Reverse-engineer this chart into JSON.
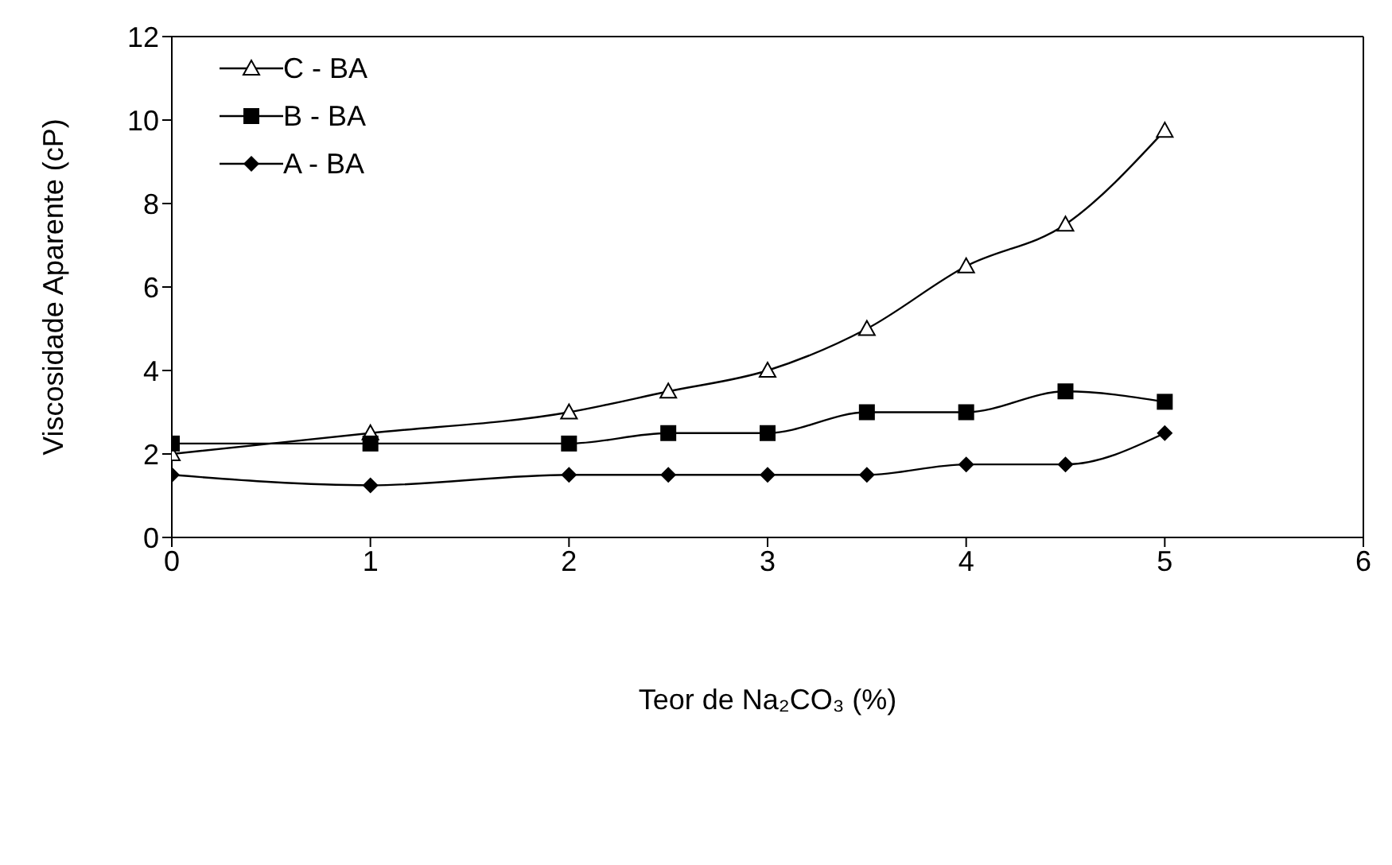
{
  "chart_data": {
    "type": "line",
    "xlabel": "Teor de Na₂CO₃ (%)",
    "ylabel": "Viscosidade Aparente (cP)",
    "x": [
      0,
      1,
      2,
      2.5,
      3,
      3.5,
      4,
      4.5,
      5
    ],
    "series": [
      {
        "name": "C - BA",
        "color": "#000000",
        "marker": "triangle",
        "values": [
          2.0,
          2.5,
          3.0,
          3.5,
          4.0,
          5.0,
          6.5,
          7.5,
          9.75
        ]
      },
      {
        "name": "B - BA",
        "color": "#000000",
        "marker": "square",
        "values": [
          2.25,
          2.25,
          2.25,
          2.5,
          2.5,
          3.0,
          3.0,
          3.5,
          3.25
        ]
      },
      {
        "name": "A - BA",
        "color": "#000000",
        "marker": "diamond",
        "values": [
          1.5,
          1.25,
          1.5,
          1.5,
          1.5,
          1.5,
          1.75,
          1.75,
          2.5
        ]
      }
    ],
    "xlim": [
      0,
      6
    ],
    "xticks": [
      0,
      1,
      2,
      3,
      4,
      5,
      6
    ],
    "ylim": [
      0,
      12
    ],
    "yticks": [
      0,
      2,
      4,
      6,
      8,
      10,
      12
    ],
    "grid": false,
    "legend": "top left",
    "line_style": "solid"
  }
}
